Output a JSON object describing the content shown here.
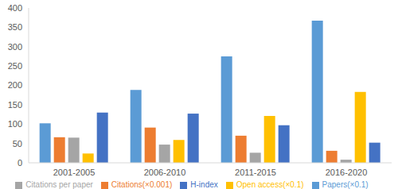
{
  "chart_data": {
    "type": "bar",
    "categories": [
      "2001-2005",
      "2006-2010",
      "2011-2015",
      "2016-2020"
    ],
    "series": [
      {
        "name": "Papers(×0.1)",
        "color": "#5b9bd5",
        "values": [
          102,
          188,
          275,
          367
        ]
      },
      {
        "name": "Citations(×0.001)",
        "color": "#ed7d31",
        "values": [
          66,
          91,
          70,
          31
        ]
      },
      {
        "name": "Citations per paper",
        "color": "#a5a5a5",
        "values": [
          65,
          47,
          26,
          8
        ]
      },
      {
        "name": "Open access(×0.1)",
        "color": "#ffc000",
        "values": [
          24,
          59,
          121,
          183
        ]
      },
      {
        "name": "H-index",
        "color": "#4472c4",
        "values": [
          130,
          127,
          97,
          52
        ]
      }
    ],
    "ylim": [
      0,
      400
    ],
    "yticks": [
      0,
      50,
      100,
      150,
      200,
      250,
      300,
      350,
      400
    ],
    "grid": false,
    "legend": "bottom"
  }
}
